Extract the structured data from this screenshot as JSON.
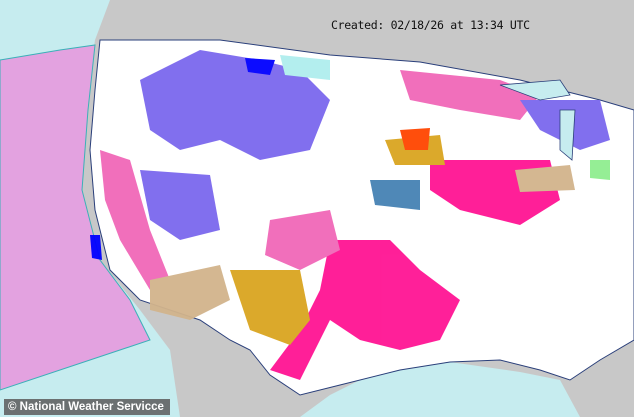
{
  "map": {
    "created_label": "Created: 02/18/26 at 13:34 UTC",
    "credit": "© National Weather Servicce",
    "colors": {
      "ocean": "#c6ecef",
      "land_outside": "#c8c8c8",
      "land_us": "#ffffff",
      "county_lines": "#a0a0a0",
      "state_lines": "#2a3f7a",
      "marine_zones": "#e3a2e0",
      "winter_storm_warning": "#f168b8",
      "winter_weather_advisory": "#7b68ee",
      "blizzard_warning": "#ff1493",
      "high_wind_warning": "#daa520",
      "wind_advisory": "#d2b48c",
      "extreme_cold_warning": "#0000ff",
      "cold_weather_advisory": "#afeeee",
      "red_flag_warning": "#ff4500",
      "dense_fog": "#4682b4",
      "lake_effect": "#90ee90"
    }
  }
}
